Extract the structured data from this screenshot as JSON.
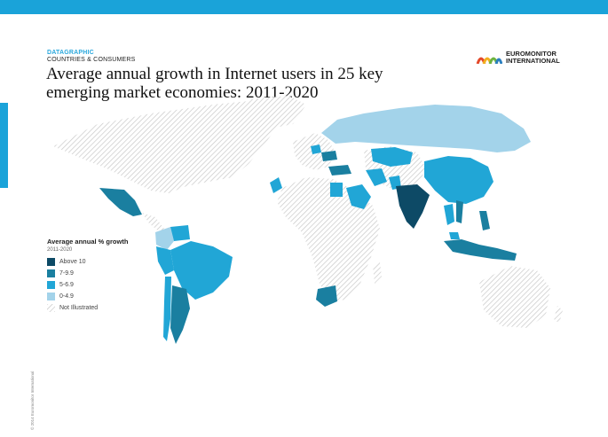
{
  "header": {
    "eyebrow_primary": "DATAGRAPHIC",
    "eyebrow_secondary": "COUNTRIES & CONSUMERS",
    "title": "Average annual growth in Internet users in 25 key emerging market economies: 2011-2020"
  },
  "logo": {
    "line1": "EUROMONITOR",
    "line2": "INTERNATIONAL"
  },
  "legend": {
    "title": "Average annual % growth",
    "subtitle": "2011-2020",
    "items": [
      {
        "label": "Above 10",
        "color": "#0d4a66"
      },
      {
        "label": "7-9.9",
        "color": "#1a7fa0"
      },
      {
        "label": "5-6.9",
        "color": "#21a6d6"
      },
      {
        "label": "0-4.9",
        "color": "#a3d3ea"
      },
      {
        "label": "Not Illustrated",
        "color": "hatched"
      }
    ]
  },
  "colors": {
    "accent": "#1aa3d9",
    "above10": "#0d4a66",
    "r7_9": "#1a7fa0",
    "r5_6": "#21a6d6",
    "r0_4": "#a3d3ea"
  },
  "regions": [
    {
      "name": "Russia",
      "growth_band": "0-4.9"
    },
    {
      "name": "Brazil",
      "growth_band": "5-6.9"
    },
    {
      "name": "Argentina",
      "growth_band": "7-9.9"
    },
    {
      "name": "Mexico",
      "growth_band": "7-9.9"
    },
    {
      "name": "Colombia",
      "growth_band": "0-4.9"
    },
    {
      "name": "Venezuela",
      "growth_band": "5-6.9"
    },
    {
      "name": "Peru",
      "growth_band": "5-6.9"
    },
    {
      "name": "Chile",
      "growth_band": "5-6.9"
    },
    {
      "name": "India",
      "growth_band": "Above 10"
    },
    {
      "name": "China",
      "growth_band": "5-6.9"
    },
    {
      "name": "Indonesia",
      "growth_band": "7-9.9"
    },
    {
      "name": "Philippines",
      "growth_band": "7-9.9"
    },
    {
      "name": "Vietnam",
      "growth_band": "7-9.9"
    },
    {
      "name": "Thailand",
      "growth_band": "5-6.9"
    },
    {
      "name": "Malaysia",
      "growth_band": "5-6.9"
    },
    {
      "name": "Turkey",
      "growth_band": "7-9.9"
    },
    {
      "name": "Ukraine",
      "growth_band": "7-9.9"
    },
    {
      "name": "Kazakhstan",
      "growth_band": "5-6.9"
    },
    {
      "name": "Saudi Arabia",
      "growth_band": "5-6.9"
    },
    {
      "name": "Egypt",
      "growth_band": "5-6.9"
    },
    {
      "name": "Morocco",
      "growth_band": "5-6.9"
    },
    {
      "name": "South Africa",
      "growth_band": "7-9.9"
    },
    {
      "name": "Pakistan",
      "growth_band": "5-6.9"
    },
    {
      "name": "Iran",
      "growth_band": "5-6.9"
    },
    {
      "name": "Poland",
      "growth_band": "5-6.9"
    }
  ],
  "copyright": "© 2014 Euromonitor International"
}
